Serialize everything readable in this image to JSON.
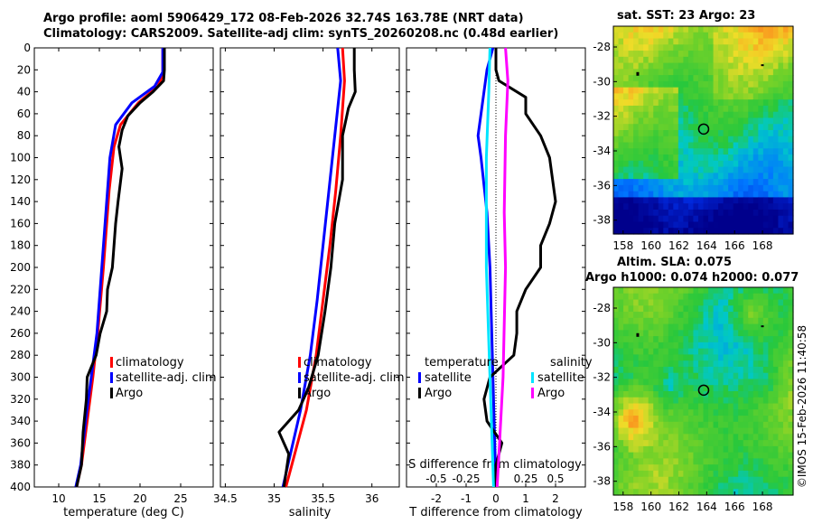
{
  "header": {
    "title_line1": "Argo profile: aoml 5906429_172 08-Feb-2026 32.74S 163.78E (NRT data)",
    "title_line2": "Climatology: CARS2009. Satellite-adj clim: synTS_20260208.nc (0.48d earlier)"
  },
  "colors": {
    "climatology": "#ff0000",
    "satellite": "#0000ff",
    "argo": "#000000",
    "sal_satellite": "#00e5ff",
    "sal_argo": "#ff00ff"
  },
  "chart_data": [
    {
      "type": "line",
      "name": "temperature-profile",
      "xlabel": "temperature (deg C)",
      "xlim": [
        7,
        29
      ],
      "xticks": [
        10,
        15,
        20,
        25
      ],
      "xtick_labels": [
        "10",
        "15",
        "20",
        "25"
      ],
      "ylim": [
        0,
        400
      ],
      "yticks": [
        0,
        20,
        40,
        60,
        80,
        100,
        120,
        140,
        160,
        180,
        200,
        220,
        240,
        260,
        280,
        300,
        320,
        340,
        360,
        380,
        400
      ],
      "ytick_labels": [
        "0",
        "20",
        "40",
        "60",
        "80",
        "100",
        "120",
        "140",
        "160",
        "180",
        "200",
        "220",
        "240",
        "260",
        "280",
        "300",
        "320",
        "340",
        "360",
        "380",
        "400"
      ],
      "legend": [
        "climatology",
        "satellite-adj. clim",
        "Argo"
      ],
      "series": [
        {
          "name": "climatology",
          "color": "#ff0000",
          "points": [
            [
              22.8,
              0
            ],
            [
              22.8,
              25
            ],
            [
              22.2,
              35
            ],
            [
              19.8,
              50
            ],
            [
              17.6,
              70
            ],
            [
              16.8,
              90
            ],
            [
              16.2,
              130
            ],
            [
              15.5,
              200
            ],
            [
              14.8,
              260
            ],
            [
              14.2,
              300
            ],
            [
              13.5,
              340
            ],
            [
              12.8,
              380
            ],
            [
              12.2,
              400
            ]
          ]
        },
        {
          "name": "satellite-adj. clim",
          "color": "#0000ff",
          "points": [
            [
              22.8,
              0
            ],
            [
              22.8,
              22
            ],
            [
              21.8,
              35
            ],
            [
              19.0,
              50
            ],
            [
              17.0,
              70
            ],
            [
              16.3,
              100
            ],
            [
              15.8,
              150
            ],
            [
              15.2,
              210
            ],
            [
              14.7,
              260
            ],
            [
              14.0,
              300
            ],
            [
              13.3,
              340
            ],
            [
              12.7,
              380
            ],
            [
              12.1,
              400
            ]
          ]
        },
        {
          "name": "Argo",
          "color": "#000000",
          "points": [
            [
              23.0,
              0
            ],
            [
              23.0,
              20
            ],
            [
              22.9,
              30
            ],
            [
              21.6,
              40
            ],
            [
              20.0,
              50
            ],
            [
              18.5,
              62
            ],
            [
              17.8,
              75
            ],
            [
              17.4,
              90
            ],
            [
              17.8,
              110
            ],
            [
              17.3,
              140
            ],
            [
              17.0,
              160
            ],
            [
              16.8,
              180
            ],
            [
              16.6,
              200
            ],
            [
              16.0,
              220
            ],
            [
              15.9,
              240
            ],
            [
              15.1,
              260
            ],
            [
              14.6,
              280
            ],
            [
              13.5,
              300
            ],
            [
              13.4,
              320
            ],
            [
              13.0,
              350
            ],
            [
              12.8,
              380
            ],
            [
              12.2,
              400
            ]
          ]
        }
      ]
    },
    {
      "type": "line",
      "name": "salinity-profile",
      "xlabel": "salinity",
      "xlim": [
        34.45,
        36.28
      ],
      "xticks": [
        34.5,
        35,
        35.5,
        36
      ],
      "xtick_labels": [
        "34.5",
        "35",
        "35.5",
        "36"
      ],
      "ylim": [
        0,
        400
      ],
      "legend": [
        "climatology",
        "satellite-adj. clim",
        "Argo"
      ],
      "series": [
        {
          "name": "climatology",
          "color": "#ff0000",
          "points": [
            [
              35.7,
              0
            ],
            [
              35.72,
              30
            ],
            [
              35.68,
              80
            ],
            [
              35.63,
              130
            ],
            [
              35.57,
              180
            ],
            [
              35.5,
              230
            ],
            [
              35.43,
              280
            ],
            [
              35.33,
              330
            ],
            [
              35.18,
              380
            ],
            [
              35.12,
              400
            ]
          ]
        },
        {
          "name": "satellite-adj. clim",
          "color": "#0000ff",
          "points": [
            [
              35.65,
              0
            ],
            [
              35.68,
              30
            ],
            [
              35.62,
              80
            ],
            [
              35.56,
              130
            ],
            [
              35.5,
              180
            ],
            [
              35.44,
              230
            ],
            [
              35.37,
              280
            ],
            [
              35.27,
              330
            ],
            [
              35.14,
              380
            ],
            [
              35.09,
              400
            ]
          ]
        },
        {
          "name": "Argo",
          "color": "#000000",
          "points": [
            [
              35.82,
              0
            ],
            [
              35.82,
              20
            ],
            [
              35.83,
              40
            ],
            [
              35.76,
              55
            ],
            [
              35.7,
              80
            ],
            [
              35.7,
              120
            ],
            [
              35.62,
              160
            ],
            [
              35.58,
              200
            ],
            [
              35.52,
              240
            ],
            [
              35.45,
              280
            ],
            [
              35.35,
              310
            ],
            [
              35.25,
              330
            ],
            [
              35.05,
              350
            ],
            [
              35.15,
              370
            ],
            [
              35.1,
              400
            ]
          ]
        }
      ]
    },
    {
      "type": "line",
      "name": "difference-from-climatology",
      "xlabel": "T difference from climatology",
      "xlabel2": "S difference from climatology",
      "xlim": [
        -3.0,
        3.0
      ],
      "xticks": [
        -2,
        -1,
        0,
        1,
        2
      ],
      "xtick_labels": [
        "-2",
        "-1",
        "0",
        "1",
        "2"
      ],
      "sticks": [
        -0.5,
        -0.25,
        0,
        0.25,
        0.5
      ],
      "stick_labels": [
        "-0.5",
        "-0.25",
        "0",
        "0.25",
        "0.5"
      ],
      "ylim": [
        0,
        400
      ],
      "legend_temperature": {
        "title": "temperature",
        "items": [
          "satellite",
          "Argo"
        ]
      },
      "legend_salinity": {
        "title": "salinity",
        "items": [
          "satellite",
          "Argo"
        ]
      },
      "series": [
        {
          "name": "temperature satellite",
          "color": "#0000ff",
          "points": [
            [
              -0.1,
              0
            ],
            [
              -0.3,
              20
            ],
            [
              -0.4,
              40
            ],
            [
              -0.5,
              60
            ],
            [
              -0.6,
              80
            ],
            [
              -0.5,
              100
            ],
            [
              -0.3,
              150
            ],
            [
              -0.2,
              200
            ],
            [
              -0.1,
              300
            ],
            [
              0.0,
              400
            ]
          ]
        },
        {
          "name": "temperature Argo",
          "color": "#000000",
          "points": [
            [
              0.0,
              0
            ],
            [
              0.0,
              20
            ],
            [
              0.1,
              30
            ],
            [
              1.0,
              45
            ],
            [
              1.0,
              60
            ],
            [
              1.5,
              80
            ],
            [
              1.8,
              100
            ],
            [
              1.9,
              120
            ],
            [
              2.0,
              140
            ],
            [
              1.8,
              160
            ],
            [
              1.5,
              180
            ],
            [
              1.5,
              200
            ],
            [
              1.0,
              220
            ],
            [
              0.7,
              240
            ],
            [
              0.7,
              260
            ],
            [
              0.6,
              280
            ],
            [
              -0.2,
              300
            ],
            [
              -0.4,
              320
            ],
            [
              -0.3,
              340
            ],
            [
              0.2,
              360
            ],
            [
              0.0,
              380
            ],
            [
              0.0,
              400
            ]
          ]
        },
        {
          "name": "salinity satellite",
          "color": "#00e5ff",
          "points": [
            [
              -0.05,
              0
            ],
            [
              -0.06,
              40
            ],
            [
              -0.08,
              100
            ],
            [
              -0.08,
              200
            ],
            [
              -0.05,
              300
            ],
            [
              -0.02,
              400
            ]
          ]
        },
        {
          "name": "salinity Argo",
          "color": "#ff00ff",
          "points": [
            [
              0.08,
              0
            ],
            [
              0.1,
              30
            ],
            [
              0.08,
              80
            ],
            [
              0.07,
              150
            ],
            [
              0.08,
              200
            ],
            [
              0.06,
              300
            ],
            [
              0.03,
              360
            ],
            [
              0.01,
              400
            ]
          ]
        }
      ]
    },
    {
      "type": "heatmap",
      "name": "sat-sst-map",
      "title": "sat. SST: 23 Argo: 23",
      "xlim": [
        157.3,
        170.2
      ],
      "ylim": [
        -38.8,
        -26.8
      ],
      "xticks": [
        158,
        160,
        162,
        164,
        166,
        168
      ],
      "xtick_labels": [
        "158",
        "160",
        "162",
        "164",
        "166",
        "168"
      ],
      "yticks": [
        -28,
        -30,
        -32,
        -34,
        -36,
        -38
      ],
      "ytick_labels": [
        "-28",
        "-30",
        "-32",
        "-34",
        "-36",
        "-38"
      ],
      "marker": {
        "lon": 163.78,
        "lat": -32.74
      }
    },
    {
      "type": "heatmap",
      "name": "altim-sla-map",
      "title": "Altim. SLA: 0.075",
      "subtitle": "Argo h1000: 0.074 h2000: 0.077",
      "xlim": [
        157.3,
        170.2
      ],
      "ylim": [
        -38.8,
        -26.8
      ],
      "xticks": [
        158,
        160,
        162,
        164,
        166,
        168
      ],
      "xtick_labels": [
        "158",
        "160",
        "162",
        "164",
        "166",
        "168"
      ],
      "yticks": [
        -28,
        -30,
        -32,
        -34,
        -36,
        -38
      ],
      "ytick_labels": [
        "-28",
        "-30",
        "-32",
        "-34",
        "-36",
        "-38"
      ],
      "marker": {
        "lon": 163.78,
        "lat": -32.74
      }
    }
  ],
  "watermark": "©IMOS 15-Feb-2026 11:40:58"
}
